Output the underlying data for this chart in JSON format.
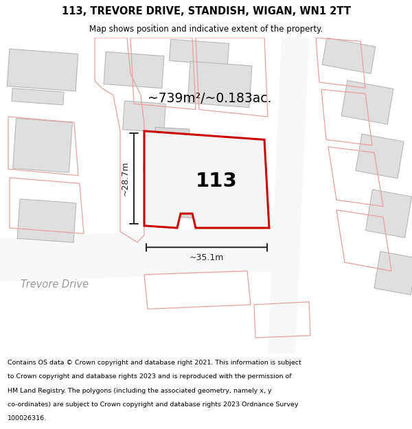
{
  "title_line1": "113, TREVORE DRIVE, STANDISH, WIGAN, WN1 2TT",
  "title_line2": "Map shows position and indicative extent of the property.",
  "area_label": "~739m²/~0.183ac.",
  "plot_number": "113",
  "dim_width": "~35.1m",
  "dim_height": "~28.7m",
  "street_label": "Trevore Drive",
  "map_bg": "#ebe9e9",
  "road_fill": "#f9f9f9",
  "building_fill": "#e0dfdf",
  "building_edge": "#b8b8b8",
  "plot_edge_color": "#cc0000",
  "plot_fill": "#f5f5f5",
  "outline_pink": "#e8a0a0",
  "dim_line_color": "#222222",
  "footer_lines": [
    "Contains OS data © Crown copyright and database right 2021. This information is subject",
    "to Crown copyright and database rights 2023 and is reproduced with the permission of",
    "HM Land Registry. The polygons (including the associated geometry, namely x, y",
    "co-ordinates) are subject to Crown copyright and database rights 2023 Ordnance Survey",
    "100026316."
  ]
}
